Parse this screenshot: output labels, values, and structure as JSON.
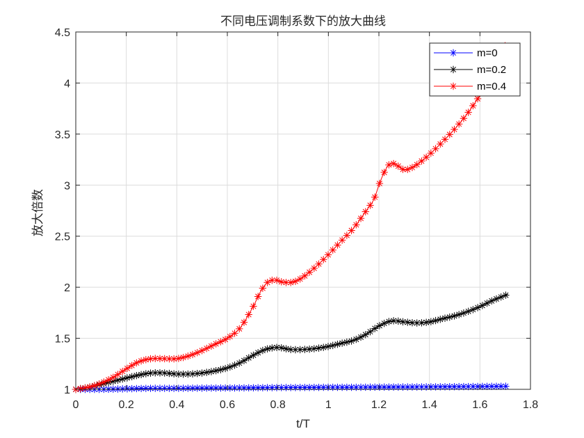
{
  "chart_data": {
    "type": "line",
    "title": "不同电压调制系数下的放大曲线",
    "xlabel": "t/T",
    "ylabel": "放大倍数",
    "xlim": [
      0,
      1.8
    ],
    "ylim": [
      1,
      4.5
    ],
    "xticks": [
      0,
      0.2,
      0.4,
      0.6,
      0.8,
      1,
      1.2,
      1.4,
      1.6,
      1.8
    ],
    "yticks": [
      1,
      1.5,
      2,
      2.5,
      3,
      3.5,
      4,
      4.5
    ],
    "xtick_labels": [
      "0",
      "0.2",
      "0.4",
      "0.6",
      "0.8",
      "1",
      "1.2",
      "1.4",
      "1.6",
      "1.8"
    ],
    "ytick_labels": [
      "1",
      "1.5",
      "2",
      "2.5",
      "3",
      "3.5",
      "4",
      "4.5"
    ],
    "grid": true,
    "legend_position": "top-right",
    "marker": "asterisk",
    "series": [
      {
        "name": "m=0",
        "color": "#0000ff",
        "x": [
          0,
          0.1,
          0.2,
          0.3,
          0.4,
          0.5,
          0.6,
          0.7,
          0.8,
          0.9,
          1.0,
          1.1,
          1.2,
          1.3,
          1.4,
          1.5,
          1.6,
          1.71
        ],
        "y": [
          1.0,
          1.0,
          1.005,
          1.01,
          1.01,
          1.012,
          1.013,
          1.015,
          1.017,
          1.018,
          1.02,
          1.02,
          1.022,
          1.023,
          1.024,
          1.026,
          1.028,
          1.03
        ]
      },
      {
        "name": "m=0.2",
        "color": "#000000",
        "x": [
          0,
          0.05,
          0.1,
          0.15,
          0.2,
          0.25,
          0.3,
          0.35,
          0.4,
          0.45,
          0.5,
          0.55,
          0.6,
          0.65,
          0.7,
          0.75,
          0.8,
          0.85,
          0.9,
          0.95,
          1.0,
          1.05,
          1.1,
          1.15,
          1.2,
          1.25,
          1.3,
          1.35,
          1.4,
          1.45,
          1.5,
          1.55,
          1.6,
          1.65,
          1.71
        ],
        "y": [
          1.0,
          1.02,
          1.05,
          1.08,
          1.11,
          1.14,
          1.16,
          1.16,
          1.15,
          1.15,
          1.16,
          1.18,
          1.21,
          1.26,
          1.33,
          1.39,
          1.41,
          1.39,
          1.39,
          1.4,
          1.42,
          1.45,
          1.48,
          1.54,
          1.62,
          1.67,
          1.66,
          1.65,
          1.66,
          1.69,
          1.72,
          1.76,
          1.81,
          1.87,
          1.93
        ]
      },
      {
        "name": "m=0.4",
        "color": "#ff0000",
        "x": [
          0,
          0.05,
          0.1,
          0.15,
          0.2,
          0.25,
          0.3,
          0.35,
          0.4,
          0.45,
          0.5,
          0.55,
          0.6,
          0.65,
          0.7,
          0.73,
          0.76,
          0.79,
          0.82,
          0.86,
          0.9,
          0.95,
          1.0,
          1.05,
          1.1,
          1.15,
          1.18,
          1.2,
          1.22,
          1.24,
          1.26,
          1.28,
          1.3,
          1.32,
          1.35,
          1.4,
          1.45,
          1.5,
          1.55,
          1.6,
          1.65,
          1.7
        ],
        "y": [
          1.0,
          1.02,
          1.06,
          1.12,
          1.2,
          1.27,
          1.3,
          1.3,
          1.3,
          1.33,
          1.38,
          1.44,
          1.5,
          1.6,
          1.8,
          1.95,
          2.05,
          2.07,
          2.05,
          2.05,
          2.1,
          2.2,
          2.32,
          2.45,
          2.58,
          2.75,
          2.86,
          3.0,
          3.12,
          3.2,
          3.21,
          3.18,
          3.15,
          3.16,
          3.2,
          3.3,
          3.42,
          3.55,
          3.7,
          3.88,
          4.08,
          4.4
        ]
      }
    ]
  }
}
